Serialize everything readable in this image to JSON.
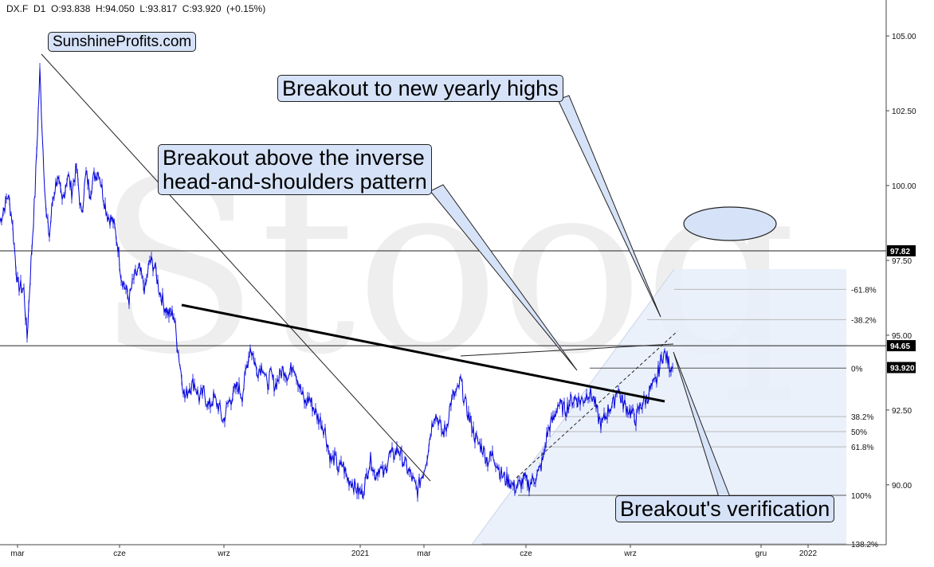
{
  "header": {
    "ohlc_text": "DX.F  D1  O:93.838  H:94.050  L:93.817  C:93.920  (+0.15%)"
  },
  "watermark": "Stooq",
  "annotations": {
    "brand": "SunshineProfits.com",
    "yearly_highs": "Breakout to new yearly highs",
    "inverse_hs": "Breakout above the inverse\nhead-and-shoulders pattern",
    "verification": "Breakout's verification"
  },
  "colors": {
    "price": "#0000dd",
    "callout_fill": "#d6e2f7",
    "fib_zone": "#e6effa",
    "line": "#000000"
  },
  "chart_data": {
    "type": "line",
    "title": "DX.F D1",
    "ohlc_last": {
      "open": 93.838,
      "high": 94.05,
      "low": 93.817,
      "close": 93.92,
      "change_pct": "+0.15%"
    },
    "y_axis": {
      "side": "right",
      "ylim": [
        88.0,
        106.2
      ],
      "ticks": [
        "105.00",
        "102.50",
        "100.00",
        "97.50",
        "95.00",
        "92.50",
        "90.00"
      ]
    },
    "x_axis": {
      "ticks": [
        "mar",
        "cze",
        "wrz",
        "2021",
        "mar",
        "cze",
        "wrz",
        "gru",
        "2022"
      ]
    },
    "horizontal_levels": [
      {
        "value": 97.82,
        "label": "97.82"
      },
      {
        "value": 94.65,
        "label": "94.65"
      },
      {
        "value": 93.92,
        "label": "93.920"
      }
    ],
    "fibonacci": {
      "base_0": 93.9,
      "base_100": 89.65,
      "levels": [
        {
          "label": "-61.8%",
          "value": 96.53
        },
        {
          "label": "-38.2%",
          "value": 95.52
        },
        {
          "label": "0%",
          "value": 93.9
        },
        {
          "label": "38.2%",
          "value": 92.28
        },
        {
          "label": "50%",
          "value": 91.78
        },
        {
          "label": "61.8%",
          "value": 91.27
        },
        {
          "label": "100%",
          "value": 89.65
        },
        {
          "label": "138.2%",
          "value": 88.03
        }
      ]
    },
    "series": [
      {
        "name": "DX.F",
        "anchors": [
          [
            0,
            98.8
          ],
          [
            10,
            99.7
          ],
          [
            15,
            98.9
          ],
          [
            22,
            96.7
          ],
          [
            30,
            96.5
          ],
          [
            34,
            94.9
          ],
          [
            38,
            97.0
          ],
          [
            44,
            99.8
          ],
          [
            50,
            103.8
          ],
          [
            54,
            101.2
          ],
          [
            58,
            99.0
          ],
          [
            62,
            98.3
          ],
          [
            66,
            99.5
          ],
          [
            72,
            100.3
          ],
          [
            78,
            99.4
          ],
          [
            85,
            100.4
          ],
          [
            90,
            99.8
          ],
          [
            96,
            100.6
          ],
          [
            102,
            99.0
          ],
          [
            108,
            100.4
          ],
          [
            113,
            99.8
          ],
          [
            118,
            100.3
          ],
          [
            124,
            100.5
          ],
          [
            130,
            99.6
          ],
          [
            135,
            99.0
          ],
          [
            142,
            98.8
          ],
          [
            148,
            98.0
          ],
          [
            152,
            97.0
          ],
          [
            157,
            96.6
          ],
          [
            162,
            96.2
          ],
          [
            168,
            96.9
          ],
          [
            175,
            97.2
          ],
          [
            182,
            96.5
          ],
          [
            188,
            97.5
          ],
          [
            194,
            97.3
          ],
          [
            200,
            96.5
          ],
          [
            206,
            96.0
          ],
          [
            212,
            95.7
          ],
          [
            218,
            95.7
          ],
          [
            223,
            94.6
          ],
          [
            228,
            93.6
          ],
          [
            232,
            92.9
          ],
          [
            238,
            93.3
          ],
          [
            244,
            93.4
          ],
          [
            250,
            92.9
          ],
          [
            256,
            93.1
          ],
          [
            262,
            92.6
          ],
          [
            268,
            92.9
          ],
          [
            275,
            92.6
          ],
          [
            280,
            92.1
          ],
          [
            286,
            92.7
          ],
          [
            292,
            93.0
          ],
          [
            298,
            93.3
          ],
          [
            304,
            93.0
          ],
          [
            310,
            94.0
          ],
          [
            314,
            94.6
          ],
          [
            318,
            94.3
          ],
          [
            322,
            93.8
          ],
          [
            326,
            93.9
          ],
          [
            330,
            94.0
          ],
          [
            335,
            93.3
          ],
          [
            340,
            93.7
          ],
          [
            345,
            93.3
          ],
          [
            350,
            93.6
          ],
          [
            356,
            93.9
          ],
          [
            362,
            93.6
          ],
          [
            368,
            94.1
          ],
          [
            373,
            93.6
          ],
          [
            378,
            93.1
          ],
          [
            383,
            92.7
          ],
          [
            388,
            92.9
          ],
          [
            393,
            92.6
          ],
          [
            398,
            92.3
          ],
          [
            403,
            92.1
          ],
          [
            408,
            91.8
          ],
          [
            412,
            91.2
          ],
          [
            416,
            90.8
          ],
          [
            420,
            90.9
          ],
          [
            425,
            90.5
          ],
          [
            430,
            90.7
          ],
          [
            436,
            90.2
          ],
          [
            442,
            90.1
          ],
          [
            446,
            89.9
          ],
          [
            450,
            89.8
          ],
          [
            454,
            89.7
          ],
          [
            458,
            90.0
          ],
          [
            462,
            90.6
          ],
          [
            466,
            90.9
          ],
          [
            470,
            90.3
          ],
          [
            476,
            90.6
          ],
          [
            482,
            90.3
          ],
          [
            488,
            91.0
          ],
          [
            494,
            91.0
          ],
          [
            500,
            91.2
          ],
          [
            506,
            90.8
          ],
          [
            512,
            90.5
          ],
          [
            516,
            90.3
          ],
          [
            520,
            90.0
          ],
          [
            524,
            89.8
          ],
          [
            528,
            90.2
          ],
          [
            532,
            90.5
          ],
          [
            536,
            91.0
          ],
          [
            540,
            91.7
          ],
          [
            545,
            92.4
          ],
          [
            550,
            92.2
          ],
          [
            555,
            91.7
          ],
          [
            560,
            91.9
          ],
          [
            566,
            92.8
          ],
          [
            570,
            93.0
          ],
          [
            574,
            93.1
          ],
          [
            578,
            93.5
          ],
          [
            583,
            92.8
          ],
          [
            588,
            92.3
          ],
          [
            592,
            92.0
          ],
          [
            596,
            91.6
          ],
          [
            600,
            91.4
          ],
          [
            606,
            91.2
          ],
          [
            612,
            90.8
          ],
          [
            618,
            91.0
          ],
          [
            624,
            90.7
          ],
          [
            628,
            90.4
          ],
          [
            634,
            90.2
          ],
          [
            640,
            90.1
          ],
          [
            646,
            89.9
          ],
          [
            652,
            90.0
          ],
          [
            658,
            90.2
          ],
          [
            664,
            90.0
          ],
          [
            670,
            90.2
          ],
          [
            676,
            90.4
          ],
          [
            682,
            90.9
          ],
          [
            686,
            91.6
          ],
          [
            690,
            92.0
          ],
          [
            695,
            92.2
          ],
          [
            700,
            92.7
          ],
          [
            705,
            92.6
          ],
          [
            710,
            92.5
          ],
          [
            716,
            92.8
          ],
          [
            722,
            92.9
          ],
          [
            728,
            92.8
          ],
          [
            734,
            92.9
          ],
          [
            738,
            93.1
          ],
          [
            742,
            93.0
          ],
          [
            746,
            92.8
          ],
          [
            750,
            92.3
          ],
          [
            755,
            92.0
          ],
          [
            760,
            92.3
          ],
          [
            765,
            92.6
          ],
          [
            770,
            92.7
          ],
          [
            775,
            93.3
          ],
          [
            780,
            92.8
          ],
          [
            786,
            92.6
          ],
          [
            792,
            92.4
          ],
          [
            798,
            92.2
          ],
          [
            803,
            92.6
          ],
          [
            808,
            92.8
          ],
          [
            812,
            92.9
          ],
          [
            816,
            93.2
          ],
          [
            820,
            93.3
          ],
          [
            824,
            93.5
          ],
          [
            828,
            94.0
          ],
          [
            832,
            94.4
          ],
          [
            836,
            94.3
          ],
          [
            840,
            94.0
          ],
          [
            844,
            93.92
          ]
        ]
      }
    ]
  }
}
